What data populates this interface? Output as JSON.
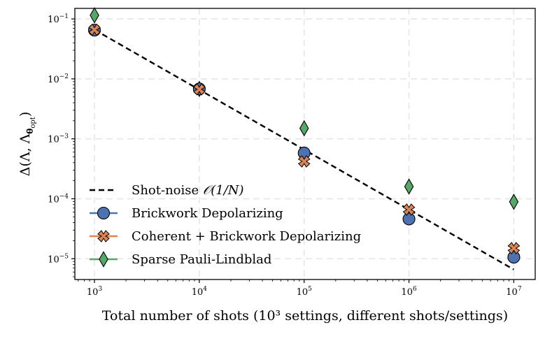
{
  "chart_data": {
    "type": "scatter",
    "xscale": "log",
    "yscale": "log",
    "xlim": [
      650,
      16000000
    ],
    "ylim": [
      4.5e-06,
      0.15
    ],
    "xlabel": "Total number of shots (10³ settings, different shots/settings)",
    "ylabel": "Δ(Λ, Λθopt)",
    "ylabel_parts": {
      "main": "Δ(Λ,  Λ",
      "sub_symbol": "θ",
      "sub_text": "opt",
      "close": ")"
    },
    "grid": true,
    "legend_position": "lower-left",
    "x_ticks": [
      {
        "value": 1000,
        "base": "10",
        "exp": "3"
      },
      {
        "value": 10000,
        "base": "10",
        "exp": "4"
      },
      {
        "value": 100000,
        "base": "10",
        "exp": "5"
      },
      {
        "value": 1000000,
        "base": "10",
        "exp": "6"
      },
      {
        "value": 10000000,
        "base": "10",
        "exp": "7"
      }
    ],
    "y_ticks": [
      {
        "value": 1e-05,
        "base": "10",
        "exp": "−5"
      },
      {
        "value": 0.0001,
        "base": "10",
        "exp": "−4"
      },
      {
        "value": 0.001,
        "base": "10",
        "exp": "−3"
      },
      {
        "value": 0.01,
        "base": "10",
        "exp": "−2"
      },
      {
        "value": 0.1,
        "base": "10",
        "exp": "−1"
      }
    ],
    "series": [
      {
        "name": "Shot-noise",
        "label_parts": {
          "text": "Shot-noise ",
          "math": "𝒪(1/N)"
        },
        "kind": "line",
        "color": "#000000",
        "x": [
          1000,
          10000000
        ],
        "y": [
          0.066,
          6.6e-06
        ]
      },
      {
        "name": "Brickwork Depolarizing",
        "kind": "marker",
        "marker": "circle",
        "color": "#4c72b0",
        "x": [
          1000,
          10000,
          100000,
          1000000,
          10000000
        ],
        "y": [
          0.065,
          0.0068,
          0.00058,
          4.6e-05,
          1.06e-05
        ]
      },
      {
        "name": "Coherent + Brickwork Depolarizing",
        "kind": "marker",
        "marker": "x",
        "color": "#dd8452",
        "x": [
          1000,
          10000,
          100000,
          1000000,
          10000000
        ],
        "y": [
          0.066,
          0.0067,
          0.00042,
          6.6e-05,
          1.5e-05
        ]
      },
      {
        "name": "Sparse Pauli-Lindblad",
        "kind": "marker",
        "marker": "diamond",
        "color": "#55a868",
        "x": [
          1000,
          10000,
          100000,
          1000000,
          10000000
        ],
        "y": [
          0.115,
          0.0068,
          0.0015,
          0.00016,
          8.9e-05
        ]
      }
    ]
  }
}
